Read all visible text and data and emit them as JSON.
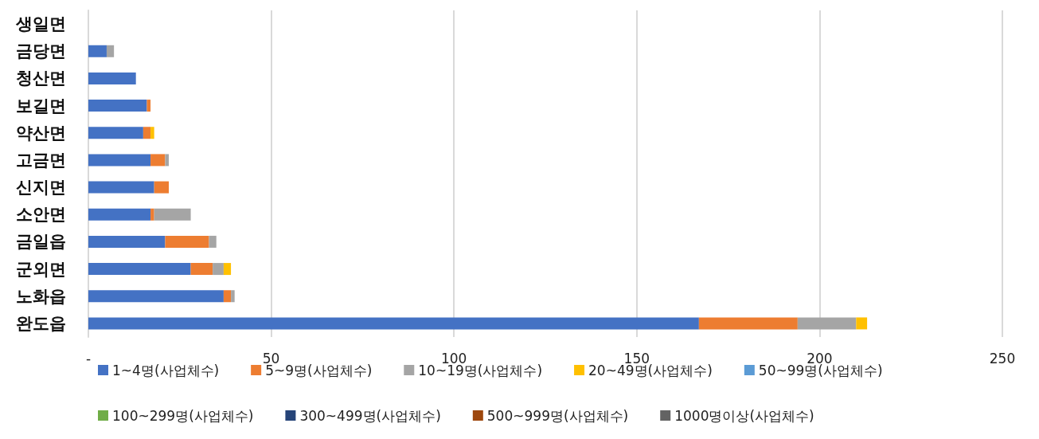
{
  "chart_data": {
    "type": "bar",
    "orientation": "horizontal",
    "stacked": true,
    "categories": [
      "생일면",
      "금당면",
      "청산면",
      "보길면",
      "약산면",
      "고금면",
      "신지면",
      "소안면",
      "금일읍",
      "군외면",
      "노화읍",
      "완도읍"
    ],
    "series": [
      {
        "name": "1~4명(사업체수)",
        "color": "#4472c4",
        "values": [
          0,
          5,
          13,
          16,
          15,
          17,
          18,
          17,
          21,
          28,
          37,
          167
        ]
      },
      {
        "name": "5~9명(사업체수)",
        "color": "#ed7d31",
        "values": [
          0,
          0,
          0,
          1,
          2,
          4,
          4,
          1,
          12,
          6,
          2,
          27
        ]
      },
      {
        "name": "10~19명(사업체수)",
        "color": "#a5a5a5",
        "values": [
          0,
          2,
          0,
          0,
          0,
          1,
          0,
          10,
          2,
          3,
          1,
          16
        ]
      },
      {
        "name": "20~49명(사업체수)",
        "color": "#ffc000",
        "values": [
          0,
          0,
          0,
          0,
          1,
          0,
          0,
          0,
          0,
          2,
          0,
          3
        ]
      },
      {
        "name": "50~99명(사업체수)",
        "color": "#5b9bd5",
        "values": [
          0,
          0,
          0,
          0,
          0,
          0,
          0,
          0,
          0,
          0,
          0,
          0
        ]
      },
      {
        "name": "100~299명(사업체수)",
        "color": "#70ad47",
        "values": [
          0,
          0,
          0,
          0,
          0,
          0,
          0,
          0,
          0,
          0,
          0,
          0
        ]
      },
      {
        "name": "300~499명(사업체수)",
        "color": "#264478",
        "values": [
          0,
          0,
          0,
          0,
          0,
          0,
          0,
          0,
          0,
          0,
          0,
          0
        ]
      },
      {
        "name": "500~999명(사업체수)",
        "color": "#9e480e",
        "values": [
          0,
          0,
          0,
          0,
          0,
          0,
          0,
          0,
          0,
          0,
          0,
          0
        ]
      },
      {
        "name": "1000명이상(사업체수)",
        "color": "#636363",
        "values": [
          0,
          0,
          0,
          0,
          0,
          0,
          0,
          0,
          0,
          0,
          0,
          0
        ]
      }
    ],
    "xlim": [
      0,
      250
    ],
    "xticks": [
      {
        "value": 0,
        "label": "-"
      },
      50,
      100,
      150,
      200,
      250
    ],
    "grid": "x",
    "legend": "bottom"
  }
}
